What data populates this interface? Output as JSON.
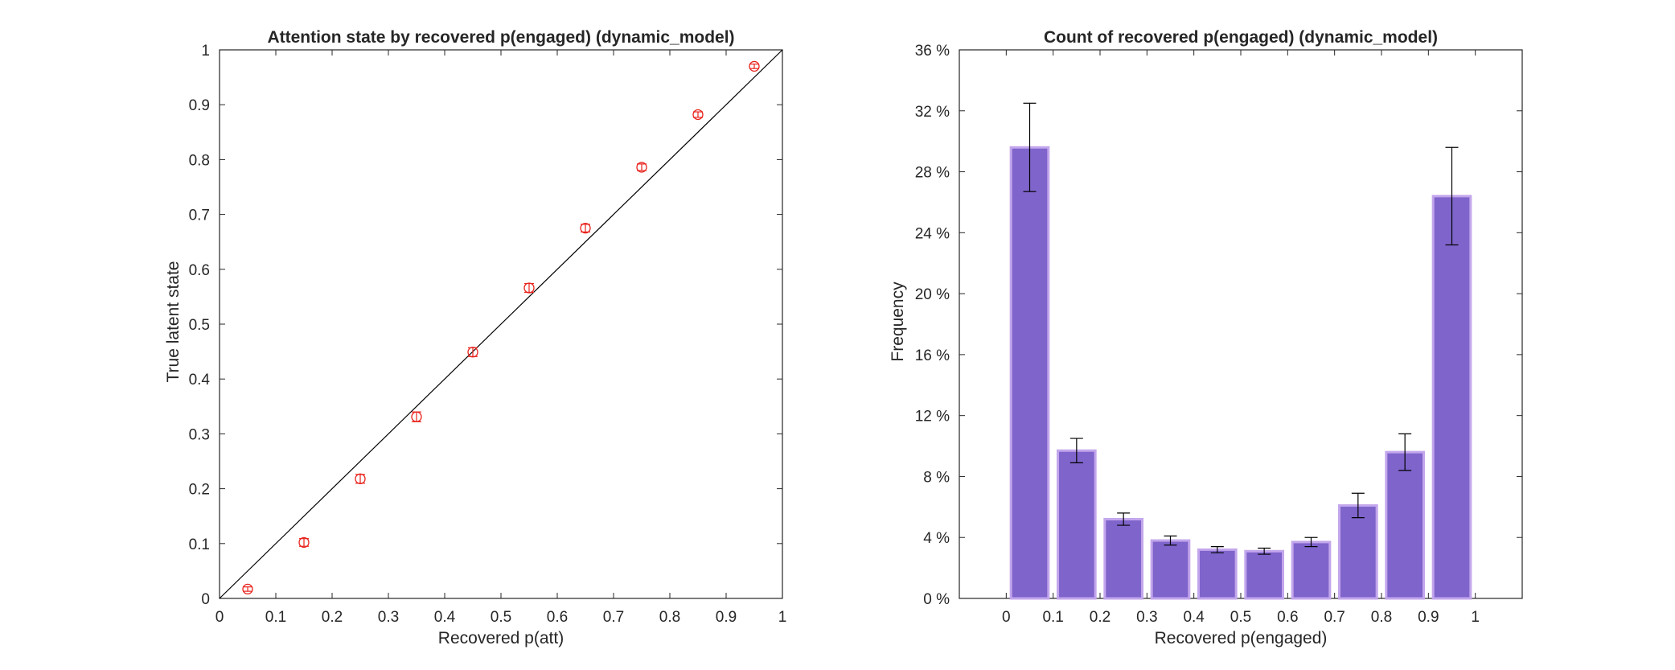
{
  "chart_data": [
    {
      "type": "scatter",
      "title": "Attention state by recovered p(engaged) (dynamic_model)",
      "xlabel": "Recovered p(att)",
      "ylabel": "True latent state",
      "xlim": [
        0,
        1
      ],
      "ylim": [
        0,
        1
      ],
      "x_ticks": [
        0,
        0.1,
        0.2,
        0.3,
        0.4,
        0.5,
        0.6,
        0.7,
        0.8,
        0.9,
        1
      ],
      "y_ticks": [
        0,
        0.1,
        0.2,
        0.3,
        0.4,
        0.5,
        0.6,
        0.7,
        0.8,
        0.9,
        1
      ],
      "x_tick_labels": [
        "0",
        "0.1",
        "0.2",
        "0.3",
        "0.4",
        "0.5",
        "0.6",
        "0.7",
        "0.8",
        "0.9",
        "1"
      ],
      "y_tick_labels": [
        "0",
        "0.1",
        "0.2",
        "0.3",
        "0.4",
        "0.5",
        "0.6",
        "0.7",
        "0.8",
        "0.9",
        "1"
      ],
      "grid": false,
      "identity_line": true,
      "marker": "circle",
      "marker_color": "#e8221c",
      "points": [
        {
          "x": 0.05,
          "y": 0.017,
          "err": 0.004
        },
        {
          "x": 0.15,
          "y": 0.102,
          "err": 0.007
        },
        {
          "x": 0.25,
          "y": 0.218,
          "err": 0.008
        },
        {
          "x": 0.35,
          "y": 0.331,
          "err": 0.009
        },
        {
          "x": 0.45,
          "y": 0.449,
          "err": 0.008
        },
        {
          "x": 0.55,
          "y": 0.566,
          "err": 0.008
        },
        {
          "x": 0.65,
          "y": 0.675,
          "err": 0.007
        },
        {
          "x": 0.75,
          "y": 0.786,
          "err": 0.006
        },
        {
          "x": 0.85,
          "y": 0.882,
          "err": 0.005
        },
        {
          "x": 0.95,
          "y": 0.97,
          "err": 0.004
        }
      ]
    },
    {
      "type": "bar",
      "title": "Count of recovered p(engaged) (dynamic_model)",
      "xlabel": "Recovered p(engaged)",
      "ylabel": "Frequency",
      "xlim": [
        -0.1,
        1.1
      ],
      "ylim": [
        0,
        36
      ],
      "x_ticks": [
        0,
        0.1,
        0.2,
        0.3,
        0.4,
        0.5,
        0.6,
        0.7,
        0.8,
        0.9,
        1
      ],
      "x_tick_labels": [
        "0",
        "0.1",
        "0.2",
        "0.3",
        "0.4",
        "0.5",
        "0.6",
        "0.7",
        "0.8",
        "0.9",
        "1"
      ],
      "y_ticks": [
        0,
        4,
        8,
        12,
        16,
        20,
        24,
        28,
        32,
        36
      ],
      "y_tick_labels": [
        "0 %",
        "4 %",
        "8 %",
        "12 %",
        "16 %",
        "20 %",
        "24 %",
        "28 %",
        "32 %",
        "36 %"
      ],
      "grid": false,
      "bar_color": "#7e64cb",
      "bar_edge_color": "#c3a6ec",
      "bar_width": 0.08,
      "x": [
        0.05,
        0.15,
        0.25,
        0.35,
        0.45,
        0.55,
        0.65,
        0.75,
        0.85,
        0.95
      ],
      "values": [
        29.6,
        9.7,
        5.2,
        3.8,
        3.2,
        3.1,
        3.7,
        6.1,
        9.6,
        26.4
      ],
      "errors": [
        2.9,
        0.8,
        0.4,
        0.3,
        0.2,
        0.2,
        0.3,
        0.8,
        1.2,
        3.2
      ]
    }
  ]
}
